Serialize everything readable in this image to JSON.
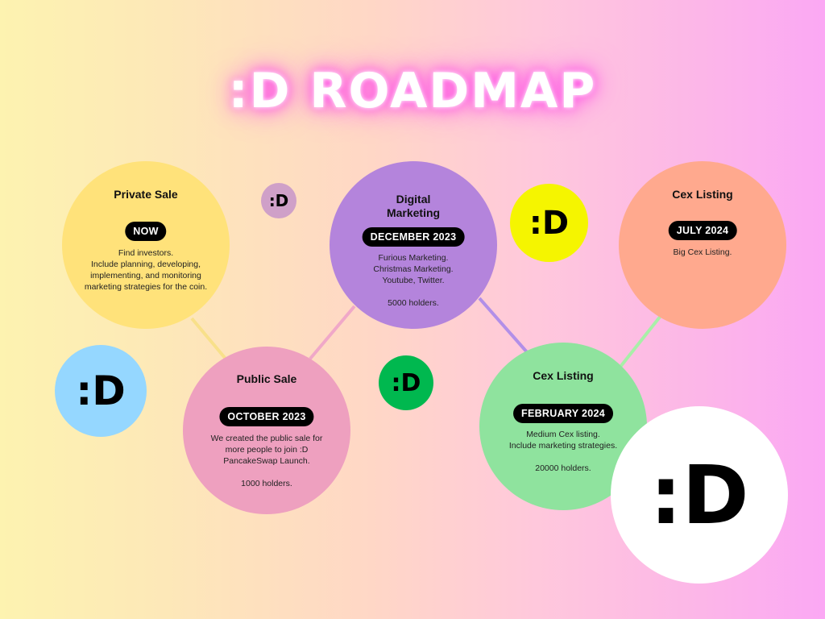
{
  "title": ":D ROADMAP",
  "milestones": [
    {
      "heading": "Private Sale",
      "date": "NOW",
      "description": "Find investors.\nInclude planning, developing, implementing, and monitoring marketing strategies for the coin.",
      "color": "#ffe27a"
    },
    {
      "heading": "Public Sale",
      "date": "OCTOBER 2023",
      "description": "We created the public sale for more people to join :D PancakeSwap Launch.\n\n1000 holders.",
      "color": "#eea0bf"
    },
    {
      "heading": "Digital\nMarketing",
      "date": "DECEMBER 2023",
      "description": "Furious Marketing.\nChristmas Marketing.\nYoutube, Twitter.\n\n5000 holders.",
      "color": "#b484dc"
    },
    {
      "heading": "Cex Listing",
      "date": "FEBRUARY 2024",
      "description": "Medium Cex listing.\nInclude marketing strategies.\n\n20000 holders.",
      "color": "#8fe39e"
    },
    {
      "heading": "Cex Listing",
      "date": "JULY 2024",
      "description": "Big Cex Listing.",
      "color": "#ffa98e"
    }
  ],
  "faces": [
    {
      "text": ":D",
      "color": "#cfa0c8"
    },
    {
      "text": ":D",
      "color": "#95d7ff"
    },
    {
      "text": ":D",
      "color": "#00b84f"
    },
    {
      "text": ":D",
      "color": "#f5f500"
    },
    {
      "text": ":D",
      "color": "#ffffff"
    }
  ],
  "connector_colors": [
    "#f8e08a",
    "#f0a8c8",
    "#b28fe8",
    "#a8efa8"
  ]
}
